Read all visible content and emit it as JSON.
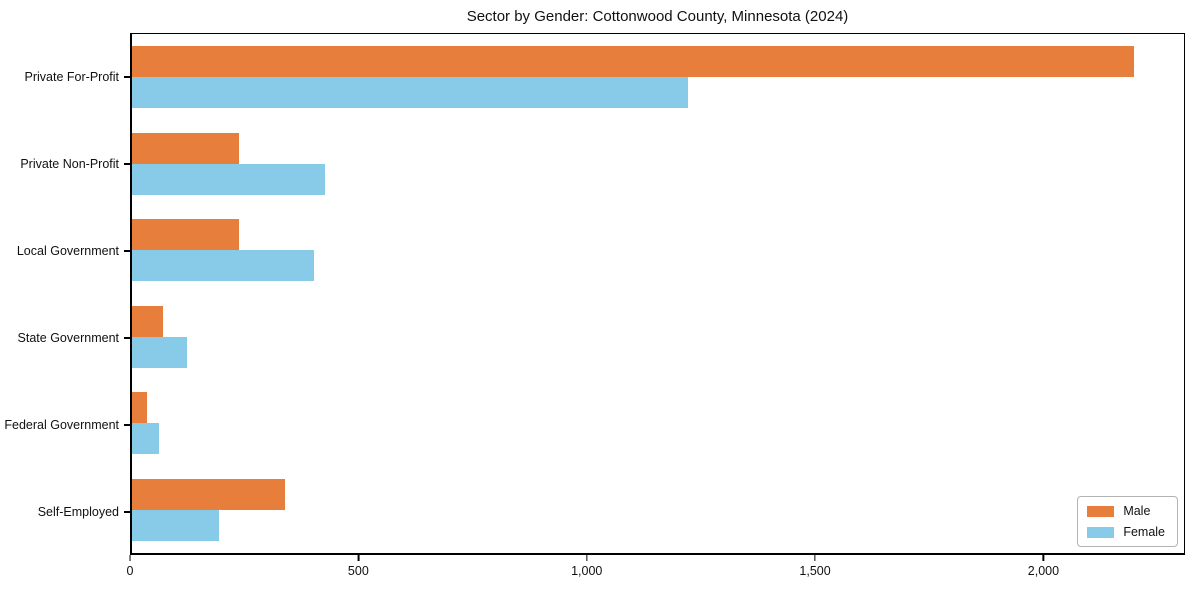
{
  "chart_data": {
    "type": "bar",
    "orientation": "horizontal",
    "title": "Sector by Gender: Cottonwood County, Minnesota (2024)",
    "categories": [
      "Private For-Profit",
      "Private Non-Profit",
      "Local Government",
      "State Government",
      "Federal Government",
      "Self-Employed"
    ],
    "series": [
      {
        "name": "Male",
        "color": "#e87e3b",
        "values": [
          2200,
          234,
          236,
          68,
          34,
          336
        ]
      },
      {
        "name": "Female",
        "color": "#87cbe8",
        "values": [
          1220,
          423,
          400,
          120,
          59,
          190
        ]
      }
    ],
    "xlabel": "",
    "ylabel": "",
    "xlim": [
      0,
      2310
    ],
    "xticks": [
      {
        "value": 0,
        "label": "0"
      },
      {
        "value": 500,
        "label": "500"
      },
      {
        "value": 1000,
        "label": "1,000"
      },
      {
        "value": 1500,
        "label": "1,500"
      },
      {
        "value": 2000,
        "label": "2,000"
      }
    ],
    "grid": false,
    "legend": {
      "position": "lower right"
    },
    "colors": {
      "axis": "#000000",
      "text": "#111111",
      "background": "#ffffff"
    }
  }
}
